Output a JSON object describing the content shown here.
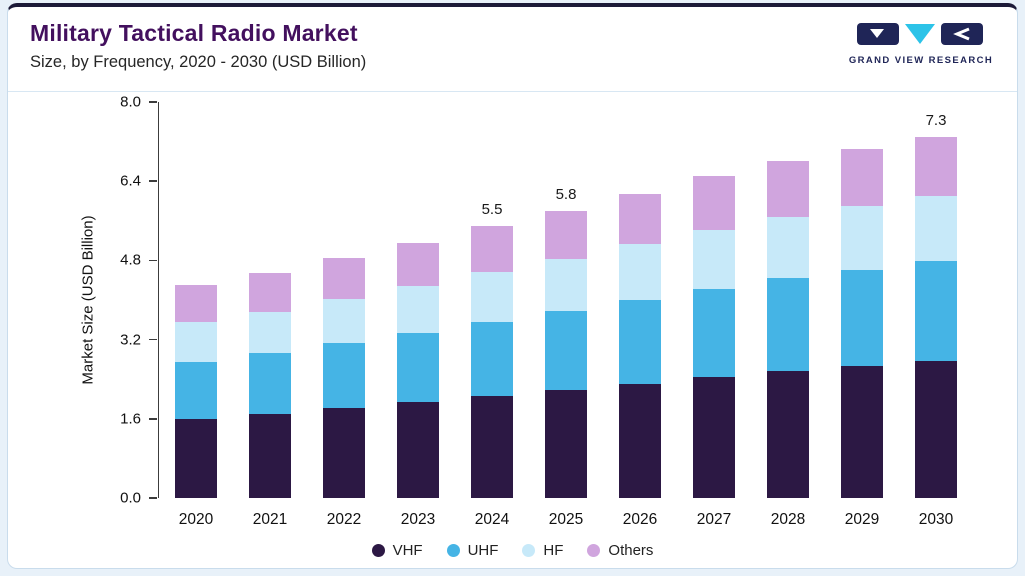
{
  "header": {
    "title": "Military Tactical Radio Market",
    "subtitle": "Size, by Frequency, 2020 - 2030 (USD Billion)",
    "logo_text": "GRAND VIEW RESEARCH"
  },
  "colors": {
    "accent_top_bar": "#1c1a38",
    "title": "#43105e",
    "logo_navy": "#1f2557",
    "logo_cyan": "#2cc3e8",
    "card_border": "#c9dcec",
    "page_background": "#e8f1f9"
  },
  "chart_data": {
    "type": "bar",
    "stacked": true,
    "title": "Military Tactical Radio Market Size, by Frequency, 2020 - 2030 (USD Billion)",
    "xlabel": "",
    "ylabel": "Market Size (USD Billion)",
    "ylim": [
      0,
      8.0
    ],
    "ytick_labels": [
      "0.0",
      "1.6",
      "3.2",
      "4.8",
      "6.4",
      "8.0"
    ],
    "grid": false,
    "legend_position": "bottom",
    "categories": [
      "2020",
      "2021",
      "2022",
      "2023",
      "2024",
      "2025",
      "2026",
      "2027",
      "2028",
      "2029",
      "2030"
    ],
    "series": [
      {
        "name": "VHF",
        "color": "#2c1844",
        "values": [
          1.6,
          1.7,
          1.82,
          1.93,
          2.06,
          2.18,
          2.31,
          2.44,
          2.56,
          2.66,
          2.76
        ]
      },
      {
        "name": "UHF",
        "color": "#45b4e5",
        "values": [
          1.15,
          1.22,
          1.31,
          1.4,
          1.5,
          1.59,
          1.69,
          1.79,
          1.88,
          1.95,
          2.02
        ]
      },
      {
        "name": "HF",
        "color": "#c7e9f9",
        "values": [
          0.8,
          0.84,
          0.89,
          0.95,
          1.01,
          1.06,
          1.13,
          1.19,
          1.24,
          1.29,
          1.33
        ]
      },
      {
        "name": "Others",
        "color": "#d0a5de",
        "values": [
          0.75,
          0.79,
          0.83,
          0.87,
          0.93,
          0.97,
          1.02,
          1.08,
          1.12,
          1.15,
          1.19
        ]
      }
    ],
    "totals": [
      4.3,
      4.55,
      4.85,
      5.15,
      5.5,
      5.8,
      6.15,
      6.5,
      6.8,
      7.05,
      7.3
    ],
    "bar_labels": [
      "",
      "",
      "",
      "",
      "5.5",
      "5.8",
      "",
      "",
      "",
      "",
      "7.3"
    ]
  }
}
